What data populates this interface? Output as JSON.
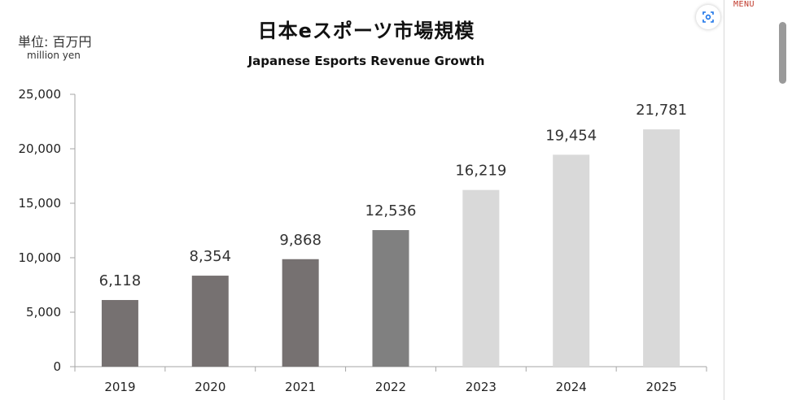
{
  "title_jp": "日本eスポーツ市場規模",
  "title_en": "Japanese Esports Revenue Growth",
  "unit_jp": "単位: 百万円",
  "unit_en": "million yen",
  "menu_label": "MENU",
  "lens_icon": "lens-icon",
  "colors": {
    "actual": "#767171",
    "actual_2022": "#808080",
    "forecast": "#d9d9d9",
    "axis": "#a6a6a6"
  },
  "chart_data": {
    "type": "bar",
    "title": "日本eスポーツ市場規模",
    "subtitle": "Japanese Esports Revenue Growth",
    "xlabel": "",
    "ylabel": "",
    "categories": [
      "2019",
      "2020",
      "2021",
      "2022",
      "2023",
      "2024",
      "2025"
    ],
    "values": [
      6118,
      8354,
      9868,
      12536,
      16219,
      19454,
      21781
    ],
    "data_labels": [
      "6,118",
      "8,354",
      "9,868",
      "12,536",
      "16,219",
      "19,454",
      "21,781"
    ],
    "yticks": [
      "0",
      "5,000",
      "10,000",
      "15,000",
      "20,000",
      "25,000"
    ],
    "ylim": [
      0,
      25000
    ],
    "grid": false,
    "legend": "none"
  }
}
